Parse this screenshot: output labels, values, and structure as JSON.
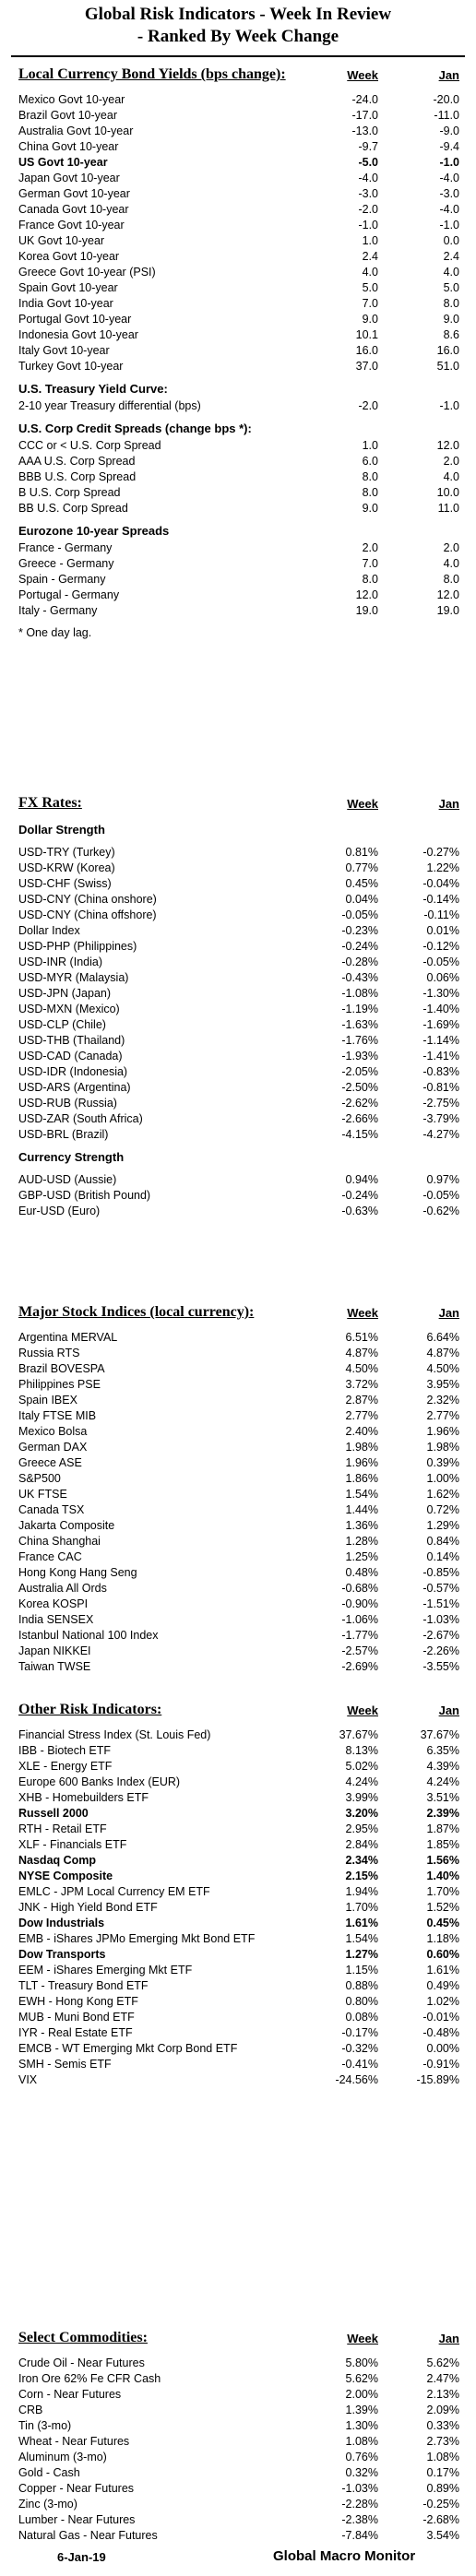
{
  "title_line1": "Global Risk Indicators - Week In Review",
  "title_line2": "- Ranked By Week Change",
  "col_week": "Week",
  "col_jan": "Jan",
  "bonds": {
    "header": "Local Currency Bond Yields (bps change):",
    "rows": [
      {
        "label": "Mexico Govt 10-year",
        "week": "-24.0",
        "jan": "-20.0"
      },
      {
        "label": "Brazil Govt 10-year",
        "week": "-17.0",
        "jan": "-11.0"
      },
      {
        "label": "Australia Govt 10-year",
        "week": "-13.0",
        "jan": "-9.0"
      },
      {
        "label": "China Govt 10-year",
        "week": "-9.7",
        "jan": "-9.4"
      },
      {
        "label": "US Govt 10-year",
        "week": "-5.0",
        "jan": "-1.0",
        "bold": true
      },
      {
        "label": "Japan Govt 10-year",
        "week": "-4.0",
        "jan": "-4.0"
      },
      {
        "label": "German Govt 10-year",
        "week": "-3.0",
        "jan": "-3.0"
      },
      {
        "label": "Canada Govt 10-year",
        "week": "-2.0",
        "jan": "-4.0"
      },
      {
        "label": "France Govt 10-year",
        "week": "-1.0",
        "jan": "-1.0"
      },
      {
        "label": "UK Govt 10-year",
        "week": "1.0",
        "jan": "0.0"
      },
      {
        "label": "Korea Govt 10-year",
        "week": "2.4",
        "jan": "2.4"
      },
      {
        "label": "Greece Govt 10-year (PSI)",
        "week": "4.0",
        "jan": "4.0"
      },
      {
        "label": "Spain Govt 10-year",
        "week": "5.0",
        "jan": "5.0"
      },
      {
        "label": "India Govt 10-year",
        "week": "7.0",
        "jan": "8.0"
      },
      {
        "label": "Portugal Govt 10-year",
        "week": "9.0",
        "jan": "9.0"
      },
      {
        "label": "Indonesia Govt 10-year",
        "week": "10.1",
        "jan": "8.6"
      },
      {
        "label": "Italy Govt 10-year",
        "week": "16.0",
        "jan": "16.0"
      },
      {
        "label": "Turkey Govt 10-year",
        "week": "37.0",
        "jan": "51.0"
      }
    ]
  },
  "curve": {
    "header": "U.S. Treasury Yield Curve:",
    "rows": [
      {
        "label": "2-10 year Treasury differential (bps)",
        "week": "-2.0",
        "jan": "-1.0"
      }
    ]
  },
  "credit": {
    "header": "U.S. Corp Credit Spreads (change bps *):",
    "rows": [
      {
        "label": "CCC or < U.S. Corp Spread",
        "week": "1.0",
        "jan": "12.0"
      },
      {
        "label": "AAA U.S. Corp Spread",
        "week": "6.0",
        "jan": "2.0"
      },
      {
        "label": "BBB U.S. Corp Spread",
        "week": "8.0",
        "jan": "4.0"
      },
      {
        "label": "B U.S. Corp Spread",
        "week": "8.0",
        "jan": "10.0"
      },
      {
        "label": "BB U.S. Corp Spread",
        "week": "9.0",
        "jan": "11.0"
      }
    ]
  },
  "eurozone": {
    "header": "Eurozone 10-year Spreads",
    "rows": [
      {
        "label": "France - Germany",
        "week": "2.0",
        "jan": "2.0"
      },
      {
        "label": "Greece - Germany",
        "week": "7.0",
        "jan": "4.0"
      },
      {
        "label": "Spain - Germany",
        "week": "8.0",
        "jan": "8.0"
      },
      {
        "label": "Portugal - Germany",
        "week": "12.0",
        "jan": "12.0"
      },
      {
        "label": "Italy - Germany",
        "week": "19.0",
        "jan": "19.0"
      }
    ],
    "note": "* One day lag."
  },
  "fx": {
    "header": "FX Rates:",
    "sub_dollar": "Dollar Strength",
    "dollar_rows": [
      {
        "label": "USD-TRY (Turkey)",
        "week": "0.81%",
        "jan": "-0.27%"
      },
      {
        "label": "USD-KRW (Korea)",
        "week": "0.77%",
        "jan": "1.22%"
      },
      {
        "label": "USD-CHF (Swiss)",
        "week": "0.45%",
        "jan": "-0.04%"
      },
      {
        "label": "USD-CNY (China onshore)",
        "week": "0.04%",
        "jan": "-0.14%"
      },
      {
        "label": "USD-CNY (China offshore)",
        "week": "-0.05%",
        "jan": "-0.11%"
      },
      {
        "label": "Dollar Index",
        "week": "-0.23%",
        "jan": "0.01%"
      },
      {
        "label": "USD-PHP (Philippines)",
        "week": "-0.24%",
        "jan": "-0.12%"
      },
      {
        "label": "USD-INR (India)",
        "week": "-0.28%",
        "jan": "-0.05%"
      },
      {
        "label": "USD-MYR (Malaysia)",
        "week": "-0.43%",
        "jan": "0.06%"
      },
      {
        "label": "USD-JPN (Japan)",
        "week": "-1.08%",
        "jan": "-1.30%"
      },
      {
        "label": "USD-MXN  (Mexico)",
        "week": "-1.19%",
        "jan": "-1.40%"
      },
      {
        "label": "USD-CLP (Chile)",
        "week": "-1.63%",
        "jan": "-1.69%"
      },
      {
        "label": "USD-THB  (Thailand)",
        "week": "-1.76%",
        "jan": "-1.14%"
      },
      {
        "label": "USD-CAD (Canada)",
        "week": "-1.93%",
        "jan": "-1.41%"
      },
      {
        "label": "USD-IDR (Indonesia)",
        "week": "-2.05%",
        "jan": "-0.83%"
      },
      {
        "label": "USD-ARS (Argentina)",
        "week": "-2.50%",
        "jan": "-0.81%"
      },
      {
        "label": "USD-RUB (Russia)",
        "week": "-2.62%",
        "jan": "-2.75%"
      },
      {
        "label": "USD-ZAR (South Africa)",
        "week": "-2.66%",
        "jan": "-3.79%"
      },
      {
        "label": "USD-BRL (Brazil)",
        "week": "-4.15%",
        "jan": "-4.27%"
      }
    ],
    "sub_currency": "Currency Strength",
    "currency_rows": [
      {
        "label": "AUD-USD (Aussie)",
        "week": "0.94%",
        "jan": "0.97%"
      },
      {
        "label": "GBP-USD (British Pound)",
        "week": "-0.24%",
        "jan": "-0.05%"
      },
      {
        "label": "Eur-USD (Euro)",
        "week": "-0.63%",
        "jan": "-0.62%"
      }
    ]
  },
  "stocks": {
    "header": "Major Stock Indices (local currency):",
    "rows": [
      {
        "label": "Argentina MERVAL",
        "week": "6.51%",
        "jan": "6.64%"
      },
      {
        "label": "Russia RTS",
        "week": "4.87%",
        "jan": "4.87%"
      },
      {
        "label": "Brazil BOVESPA",
        "week": "4.50%",
        "jan": "4.50%"
      },
      {
        "label": "Philippines PSE",
        "week": "3.72%",
        "jan": "3.95%"
      },
      {
        "label": "Spain IBEX",
        "week": "2.87%",
        "jan": "2.32%"
      },
      {
        "label": "Italy FTSE MIB",
        "week": "2.77%",
        "jan": "2.77%"
      },
      {
        "label": "Mexico Bolsa",
        "week": "2.40%",
        "jan": "1.96%"
      },
      {
        "label": "German DAX",
        "week": "1.98%",
        "jan": "1.98%"
      },
      {
        "label": "Greece ASE",
        "week": "1.96%",
        "jan": "0.39%"
      },
      {
        "label": "S&P500",
        "week": "1.86%",
        "jan": "1.00%"
      },
      {
        "label": "UK FTSE",
        "week": "1.54%",
        "jan": "1.62%"
      },
      {
        "label": "Canada TSX",
        "week": "1.44%",
        "jan": "0.72%"
      },
      {
        "label": "Jakarta Composite",
        "week": "1.36%",
        "jan": "1.29%"
      },
      {
        "label": "China Shanghai",
        "week": "1.28%",
        "jan": "0.84%"
      },
      {
        "label": "France CAC",
        "week": "1.25%",
        "jan": "0.14%"
      },
      {
        "label": "Hong Kong Hang Seng",
        "week": "0.48%",
        "jan": "-0.85%"
      },
      {
        "label": "Australia All Ords",
        "week": "-0.68%",
        "jan": "-0.57%"
      },
      {
        "label": "Korea KOSPI",
        "week": "-0.90%",
        "jan": "-1.51%"
      },
      {
        "label": "India SENSEX",
        "week": "-1.06%",
        "jan": "-1.03%"
      },
      {
        "label": "Istanbul National 100 Index",
        "week": "-1.77%",
        "jan": "-2.67%"
      },
      {
        "label": "Japan NIKKEI",
        "week": "-2.57%",
        "jan": "-2.26%"
      },
      {
        "label": "Taiwan  TWSE",
        "week": "-2.69%",
        "jan": "-3.55%"
      }
    ]
  },
  "risk": {
    "header": "Other Risk Indicators:",
    "rows": [
      {
        "label": "Financial Stress Index (St. Louis Fed)",
        "week": "37.67%",
        "jan": "37.67%"
      },
      {
        "label": "IBB - Biotech ETF",
        "week": "8.13%",
        "jan": "6.35%"
      },
      {
        "label": "XLE - Energy ETF",
        "week": "5.02%",
        "jan": "4.39%"
      },
      {
        "label": "Europe 600 Banks Index (EUR)",
        "week": "4.24%",
        "jan": "4.24%"
      },
      {
        "label": "XHB - Homebuilders ETF",
        "week": "3.99%",
        "jan": "3.51%"
      },
      {
        "label": "Russell 2000",
        "week": "3.20%",
        "jan": "2.39%",
        "bold": true
      },
      {
        "label": "RTH - Retail ETF",
        "week": "2.95%",
        "jan": "1.87%"
      },
      {
        "label": "XLF - Financials ETF",
        "week": "2.84%",
        "jan": "1.85%"
      },
      {
        "label": "Nasdaq Comp",
        "week": "2.34%",
        "jan": "1.56%",
        "bold": true
      },
      {
        "label": "NYSE Composite",
        "week": "2.15%",
        "jan": "1.40%",
        "bold": true
      },
      {
        "label": "EMLC - JPM Local Currency EM ETF",
        "week": "1.94%",
        "jan": "1.70%"
      },
      {
        "label": "JNK - High Yield Bond ETF",
        "week": "1.70%",
        "jan": "1.52%"
      },
      {
        "label": "Dow Industrials",
        "week": "1.61%",
        "jan": "0.45%",
        "bold": true
      },
      {
        "label": "EMB - iShares JPMo Emerging Mkt Bond ETF",
        "week": "1.54%",
        "jan": "1.18%"
      },
      {
        "label": "Dow Transports",
        "week": "1.27%",
        "jan": "0.60%",
        "bold": true
      },
      {
        "label": "EEM - iShares Emerging Mkt ETF",
        "week": "1.15%",
        "jan": "1.61%"
      },
      {
        "label": "TLT - Treasury Bond ETF",
        "week": "0.88%",
        "jan": "0.49%"
      },
      {
        "label": "EWH - Hong Kong ETF",
        "week": "0.80%",
        "jan": "1.02%"
      },
      {
        "label": "MUB - Muni Bond ETF",
        "week": "0.08%",
        "jan": "-0.01%"
      },
      {
        "label": "IYR - Real Estate ETF",
        "week": "-0.17%",
        "jan": "-0.48%"
      },
      {
        "label": "EMCB - WT Emerging Mkt Corp Bond ETF",
        "week": "-0.32%",
        "jan": "0.00%"
      },
      {
        "label": "SMH - Semis ETF",
        "week": "-0.41%",
        "jan": "-0.91%"
      },
      {
        "label": "VIX",
        "week": "-24.56%",
        "jan": "-15.89%"
      }
    ]
  },
  "commodities": {
    "header": "Select Commodities:",
    "rows": [
      {
        "label": "Crude Oil - Near Futures",
        "week": "5.80%",
        "jan": "5.62%"
      },
      {
        "label": "Iron Ore 62% Fe CFR Cash",
        "week": "5.62%",
        "jan": "2.47%"
      },
      {
        "label": "Corn - Near Futures",
        "week": "2.00%",
        "jan": "2.13%"
      },
      {
        "label": "CRB",
        "week": "1.39%",
        "jan": "2.09%"
      },
      {
        "label": "Tin (3-mo)",
        "week": "1.30%",
        "jan": "0.33%"
      },
      {
        "label": "Wheat - Near Futures",
        "week": "1.08%",
        "jan": "2.73%"
      },
      {
        "label": "Aluminum (3-mo)",
        "week": "0.76%",
        "jan": "1.08%"
      },
      {
        "label": "Gold - Cash",
        "week": "0.32%",
        "jan": "0.17%"
      },
      {
        "label": "Copper - Near Futures",
        "week": "-1.03%",
        "jan": "0.89%"
      },
      {
        "label": "Zinc (3-mo)",
        "week": "-2.28%",
        "jan": "-0.25%"
      },
      {
        "label": "Lumber - Near Futures",
        "week": "-2.38%",
        "jan": "-2.68%"
      },
      {
        "label": "Natural Gas - Near Futures",
        "week": "-7.84%",
        "jan": "3.54%"
      }
    ]
  },
  "footer": {
    "date": "6-Jan-19",
    "brand": "Global Macro Monitor"
  }
}
